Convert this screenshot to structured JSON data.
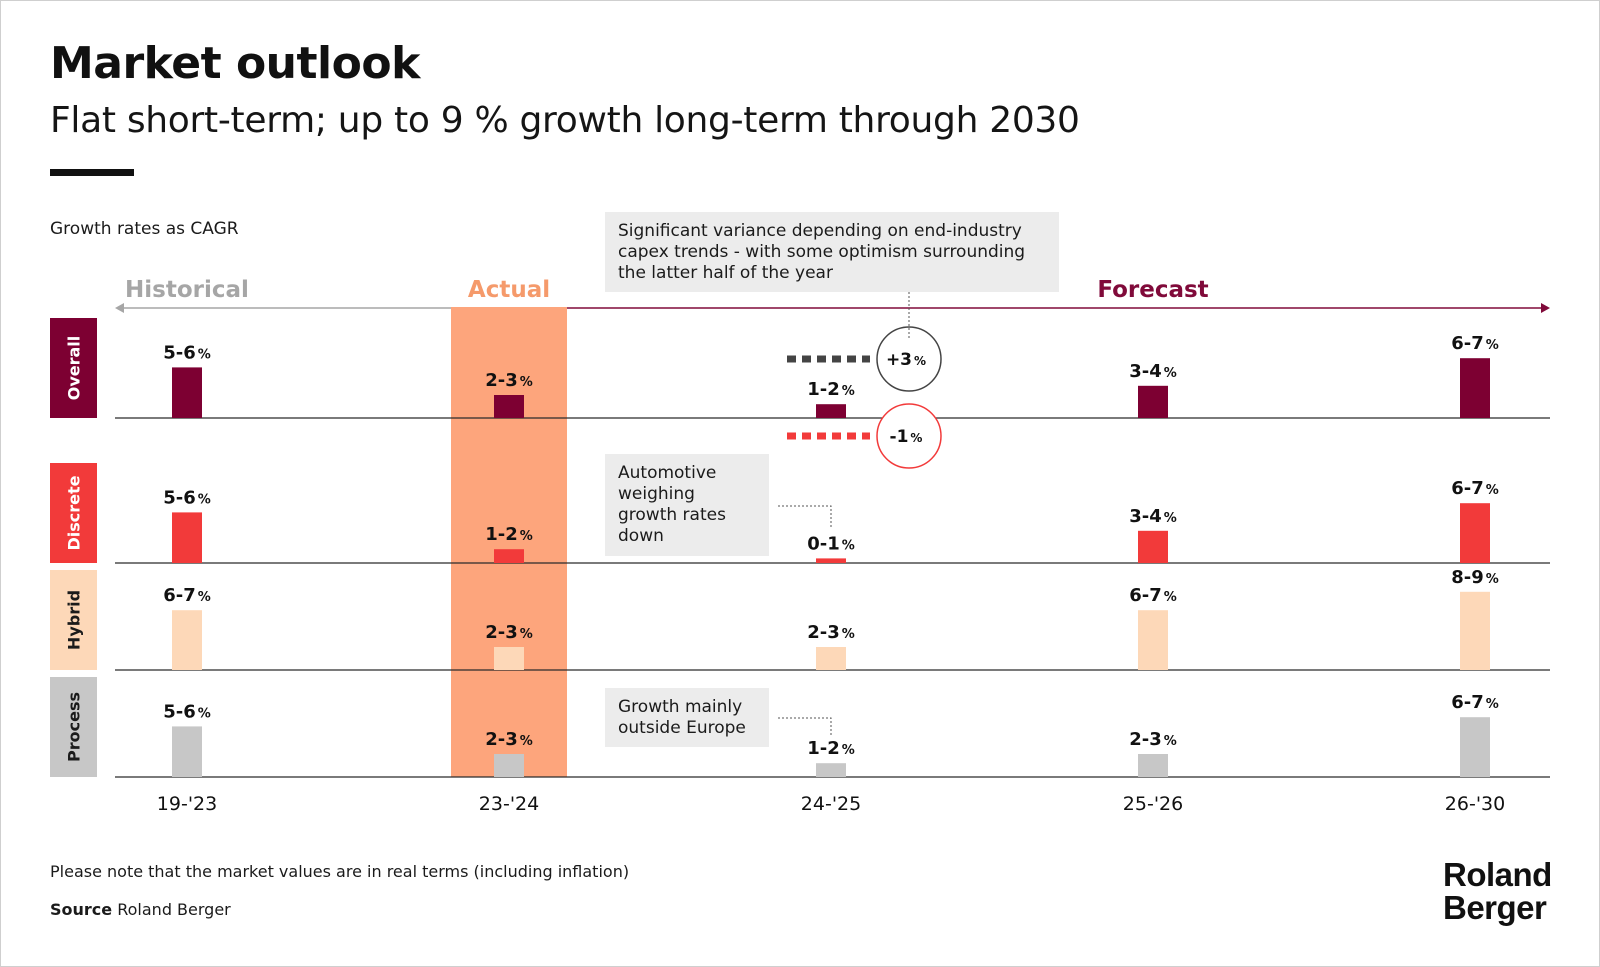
{
  "header": {
    "title": "Market outlook",
    "subtitle": "Flat short-term; up to 9 % growth long-term through 2030",
    "unit_note": "Growth rates as CAGR"
  },
  "footer": {
    "note": "Please note that the market values are in real terms (including inflation)",
    "source_label": "Source",
    "source_value": "Roland Berger",
    "logo_line1": "Roland",
    "logo_line2": "Berger"
  },
  "colors": {
    "Overall": "#7d0032",
    "Discrete": "#f23a3a",
    "Hybrid": "#fdd8b8",
    "Process": "#c7c7c7",
    "actual_highlight": "#fda57c",
    "historical": "#a6a6a6",
    "actual": "#f59a6b",
    "forecast": "#800a3a",
    "callout_bg": "#ececec",
    "range_up": "#444444",
    "range_down": "#f23a3a"
  },
  "chart_data": {
    "type": "bar",
    "unit": "% CAGR",
    "categories": [
      "19-'23",
      "23-'24",
      "24-'25",
      "25-'26",
      "26-'30"
    ],
    "phases": [
      {
        "label": "Historical",
        "categories": [
          "19-'23"
        ]
      },
      {
        "label": "Actual",
        "categories": [
          "23-'24"
        ]
      },
      {
        "label": "Forecast",
        "categories": [
          "24-'25",
          "25-'26",
          "26-'30"
        ]
      }
    ],
    "series": [
      {
        "name": "Overall",
        "labels": [
          "5-6",
          "2-3",
          "1-2",
          "3-4",
          "6-7"
        ],
        "values": [
          5.5,
          2.5,
          1.5,
          3.5,
          6.5
        ]
      },
      {
        "name": "Discrete",
        "labels": [
          "5-6",
          "1-2",
          "0-1",
          "3-4",
          "6-7"
        ],
        "values": [
          5.5,
          1.5,
          0.5,
          3.5,
          6.5
        ]
      },
      {
        "name": "Hybrid",
        "labels": [
          "6-7",
          "2-3",
          "2-3",
          "6-7",
          "8-9"
        ],
        "values": [
          6.5,
          2.5,
          2.5,
          6.5,
          8.5
        ]
      },
      {
        "name": "Process",
        "labels": [
          "5-6",
          "2-3",
          "1-2",
          "2-3",
          "6-7"
        ],
        "values": [
          5.5,
          2.5,
          1.5,
          2.5,
          6.5
        ]
      }
    ],
    "range_markers": [
      {
        "series": "Overall",
        "category": "24-'25",
        "label": "+3",
        "value": 3
      },
      {
        "series": "Overall",
        "category": "24-'25",
        "label": "-1",
        "value": -1
      }
    ],
    "annotations": [
      {
        "lines": [
          "Significant variance depending on end-industry",
          "capex trends - with some optimism surrounding",
          "the latter half of the year"
        ],
        "series": "Overall",
        "category": "24-'25"
      },
      {
        "lines": [
          "Automotive",
          "weighing",
          "growth rates",
          "down"
        ],
        "series": "Discrete",
        "category": "24-'25"
      },
      {
        "lines": [
          "Growth mainly",
          "outside Europe"
        ],
        "series": "Process",
        "category": "24-'25"
      }
    ],
    "percent_sign": "%"
  }
}
